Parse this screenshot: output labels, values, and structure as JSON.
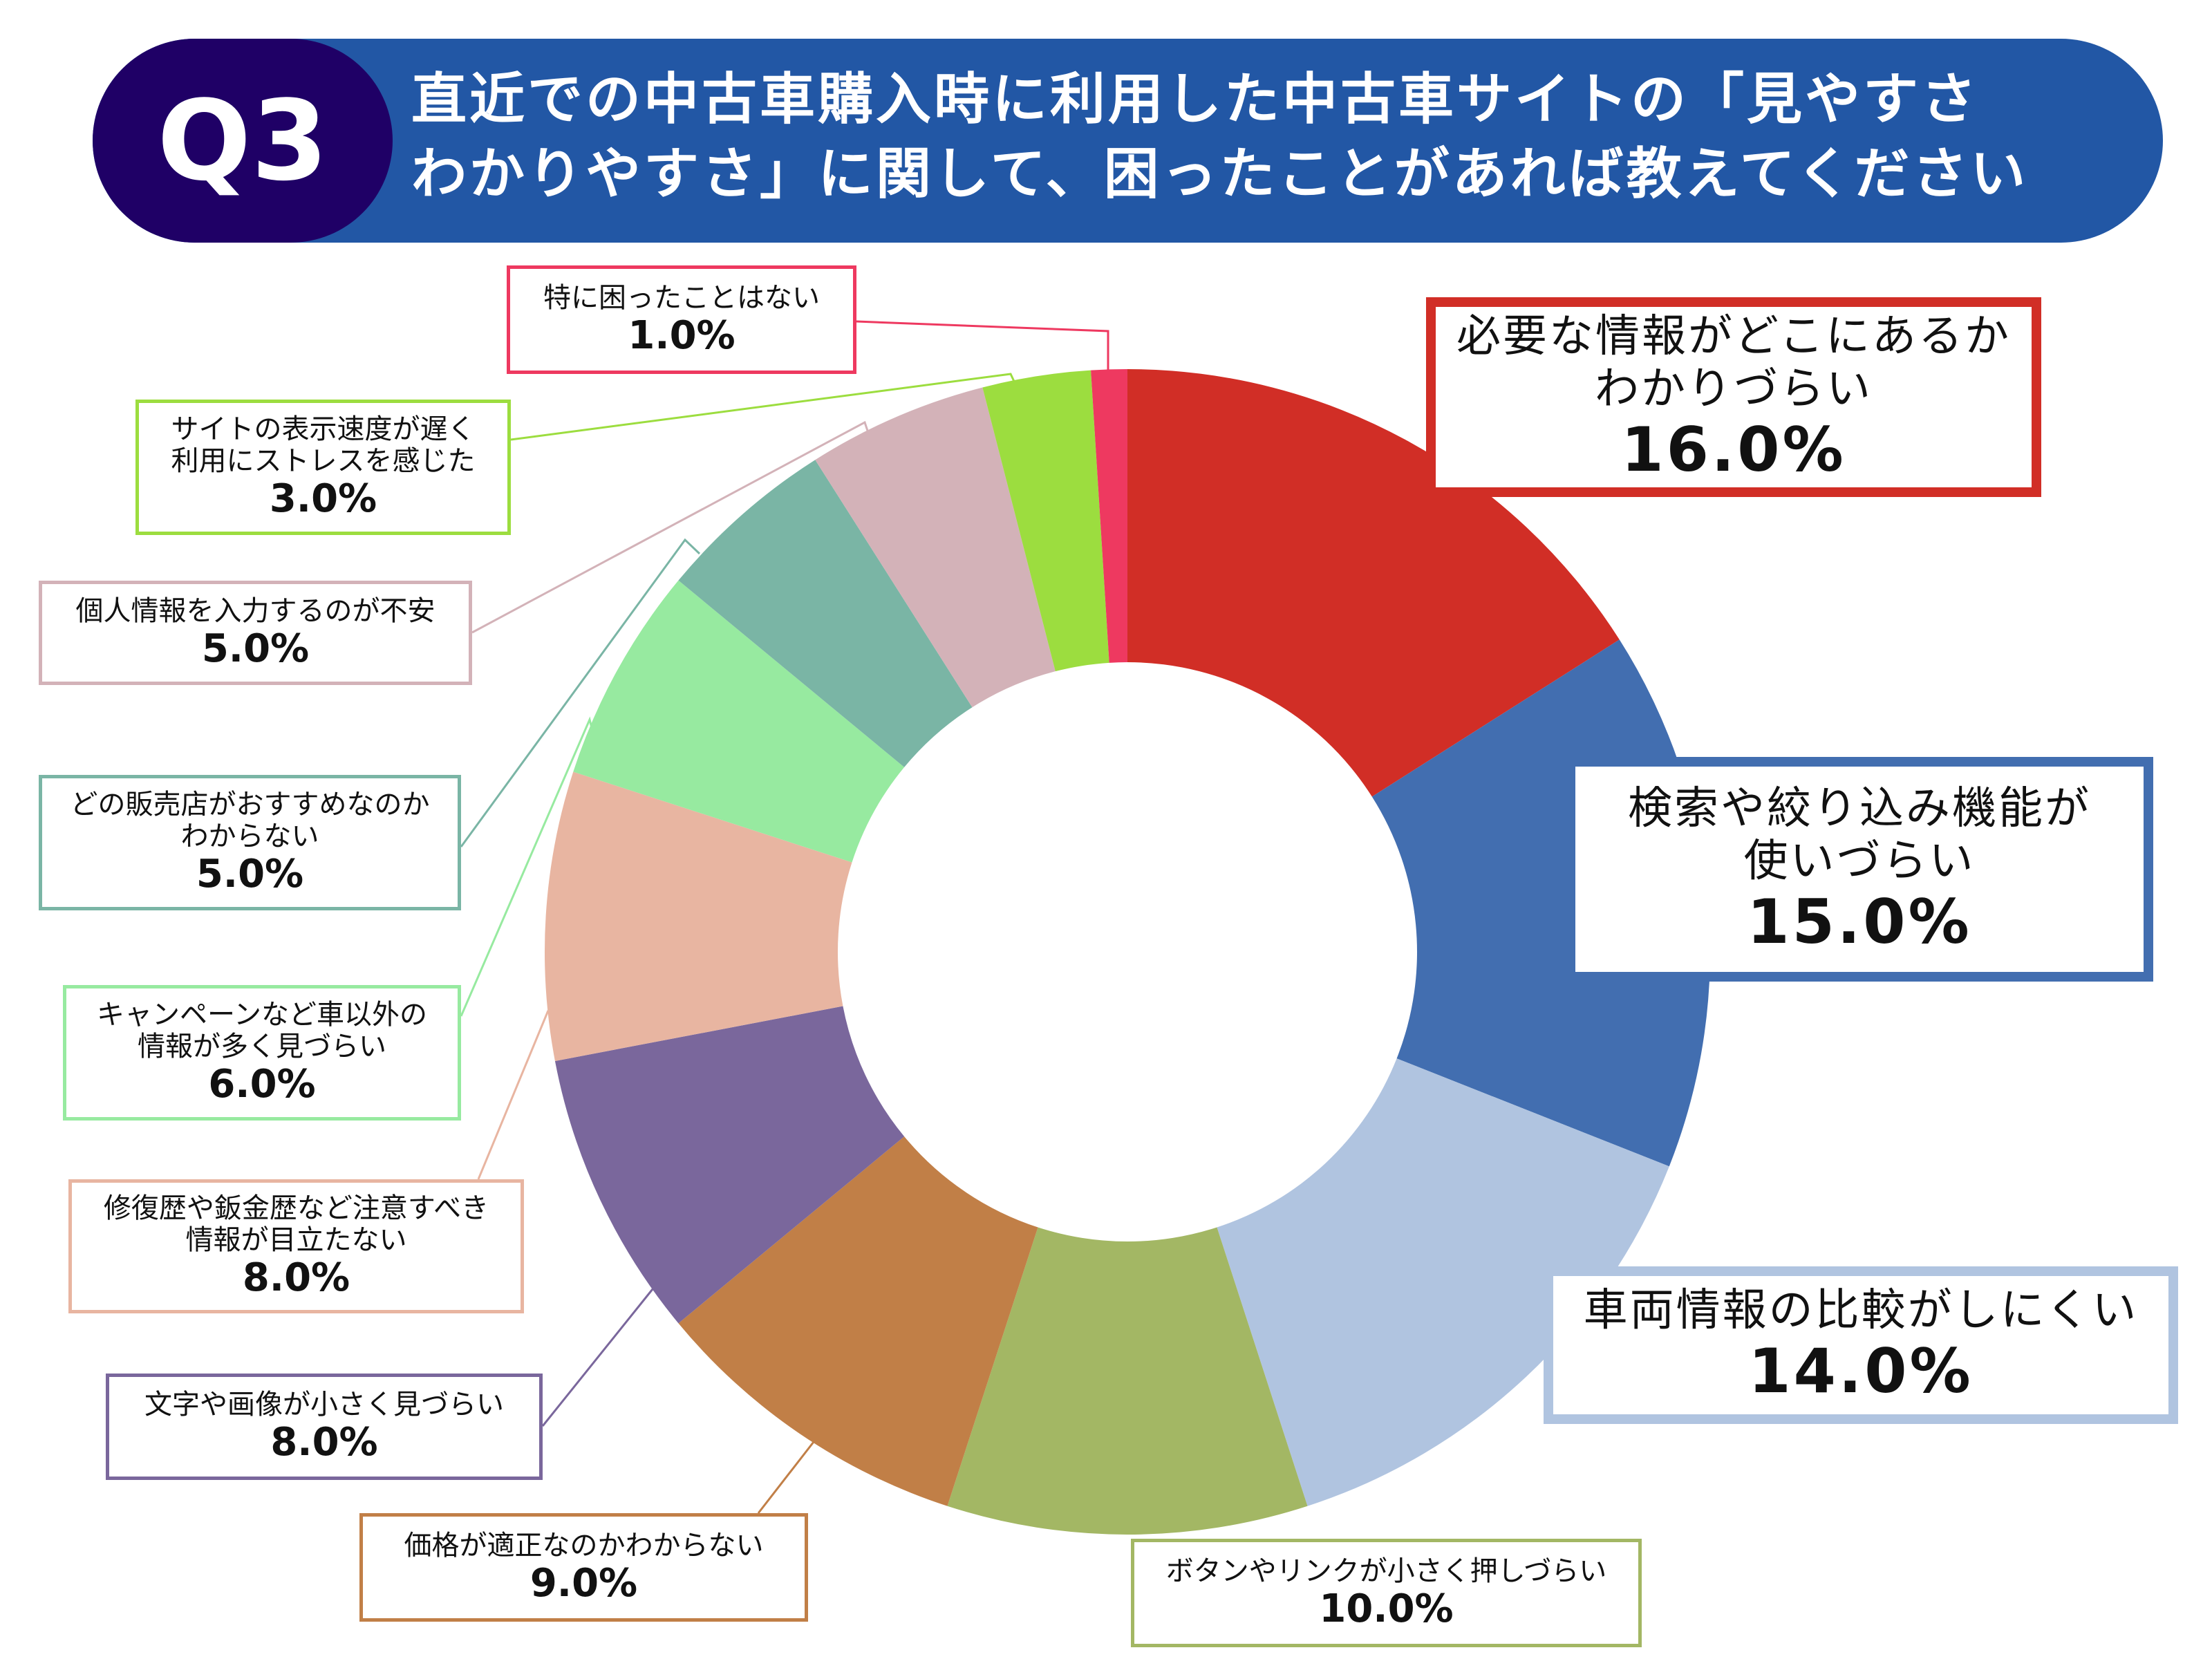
{
  "header": {
    "badge": "Q3",
    "title": "直近での中古車購入時に利用した中古車サイトの「見やすさ\nわかりやすさ」に関して、困ったことがあれば教えてください"
  },
  "chart_data": {
    "type": "pie",
    "donut": true,
    "start": "top, clockwise",
    "unit": "%",
    "slices": [
      {
        "label": "必要な情報がどこにあるか\nわかりづらい",
        "value": 16.0,
        "display": "16.0%",
        "color": "#D12E26"
      },
      {
        "label": "検索や絞り込み機能が\n使いづらい",
        "value": 15.0,
        "display": "15.0%",
        "color": "#426EB0"
      },
      {
        "label": "車両情報の比較がしにくい",
        "value": 14.0,
        "display": "14.0%",
        "color": "#B0C4E0"
      },
      {
        "label": "ボタンやリンクが小さく押しづらい",
        "value": 10.0,
        "display": "10.0%",
        "color": "#A3B764"
      },
      {
        "label": "価格が適正なのかわからない",
        "value": 9.0,
        "display": "9.0%",
        "color": "#C17F47"
      },
      {
        "label": "文字や画像が小さく見づらい",
        "value": 8.0,
        "display": "8.0%",
        "color": "#7A679C"
      },
      {
        "label": "修復歴や鈑金歴など注意すべき\n情報が目立たない",
        "value": 8.0,
        "display": "8.0%",
        "color": "#E8B5A1"
      },
      {
        "label": "キャンペーンなど車以外の\n情報が多く見づらい",
        "value": 6.0,
        "display": "6.0%",
        "color": "#97EAA0"
      },
      {
        "label": "どの販売店がおすすめなのか\nわからない",
        "value": 5.0,
        "display": "5.0%",
        "color": "#7AB5A5"
      },
      {
        "label": "個人情報を入力するのが不安",
        "value": 5.0,
        "display": "5.0%",
        "color": "#D3B2B8"
      },
      {
        "label": "サイトの表示速度が遅く\n利用にストレスを感じた",
        "value": 3.0,
        "display": "3.0%",
        "color": "#9CDD3F"
      },
      {
        "label": "特に困ったことはない",
        "value": 1.0,
        "display": "1.0%",
        "color": "#EE3960"
      }
    ]
  }
}
